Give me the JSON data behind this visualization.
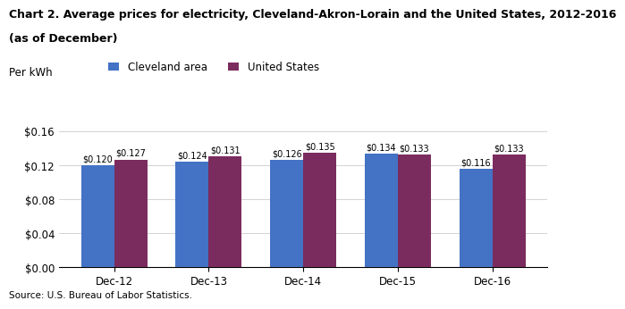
{
  "title_line1": "Chart 2. Average prices for electricity, Cleveland-Akron-Lorain and the United States, 2012-2016",
  "title_line2": "(as of December)",
  "ylabel": "Per kWh",
  "categories": [
    "Dec-12",
    "Dec-13",
    "Dec-14",
    "Dec-15",
    "Dec-16"
  ],
  "cleveland_values": [
    0.12,
    0.124,
    0.126,
    0.134,
    0.116
  ],
  "us_values": [
    0.127,
    0.131,
    0.135,
    0.133,
    0.133
  ],
  "cleveland_label": "Cleveland area",
  "us_label": "United States",
  "cleveland_color": "#4472C4",
  "us_color": "#7B2C5E",
  "ylim": [
    0.0,
    0.175
  ],
  "yticks": [
    0.0,
    0.04,
    0.08,
    0.12,
    0.16
  ],
  "source": "Source: U.S. Bureau of Labor Statistics.",
  "bar_width": 0.35
}
